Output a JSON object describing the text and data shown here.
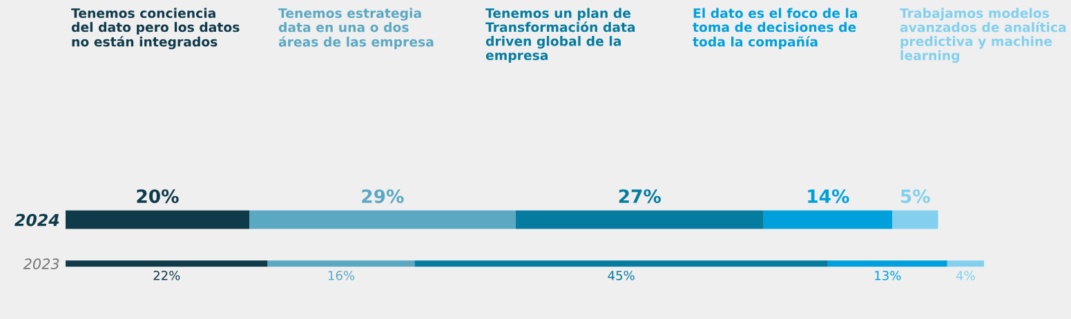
{
  "chart_data": {
    "type": "bar",
    "orientation": "horizontal",
    "stacked": true,
    "categories": [
      "2024",
      "2023"
    ],
    "tick_labels": "y",
    "series": [
      {
        "name": "Tenemos conciencia\ndel dato pero los datos\nno están integrados",
        "color": "#0f3a4a",
        "values": [
          20,
          22
        ],
        "value_labels": [
          "20%",
          "22%"
        ]
      },
      {
        "name": "Tenemos estrategia\ndata en una o dos\náreas de las empresa",
        "color": "#5ba8c2",
        "values": [
          29,
          16
        ],
        "value_labels": [
          "29%",
          "16%"
        ]
      },
      {
        "name": "Tenemos un plan de\nTransformación data\ndriven global de la\nempresa",
        "color": "#057c9f",
        "values": [
          27,
          45
        ],
        "value_labels": [
          "27%",
          "45%"
        ]
      },
      {
        "name": "El dato es el foco de la\ntoma de decisiones de\ntoda la compañía",
        "color": "#00a0dc",
        "values": [
          14,
          13
        ],
        "value_labels": [
          "14%",
          "13%"
        ]
      },
      {
        "name": "Trabajamos modelos\navanzados de analítica\npredictiva y machine\nlearning",
        "color": "#82d0ee",
        "values": [
          5,
          4
        ],
        "value_labels": [
          "5%",
          "4%"
        ]
      }
    ]
  }
}
